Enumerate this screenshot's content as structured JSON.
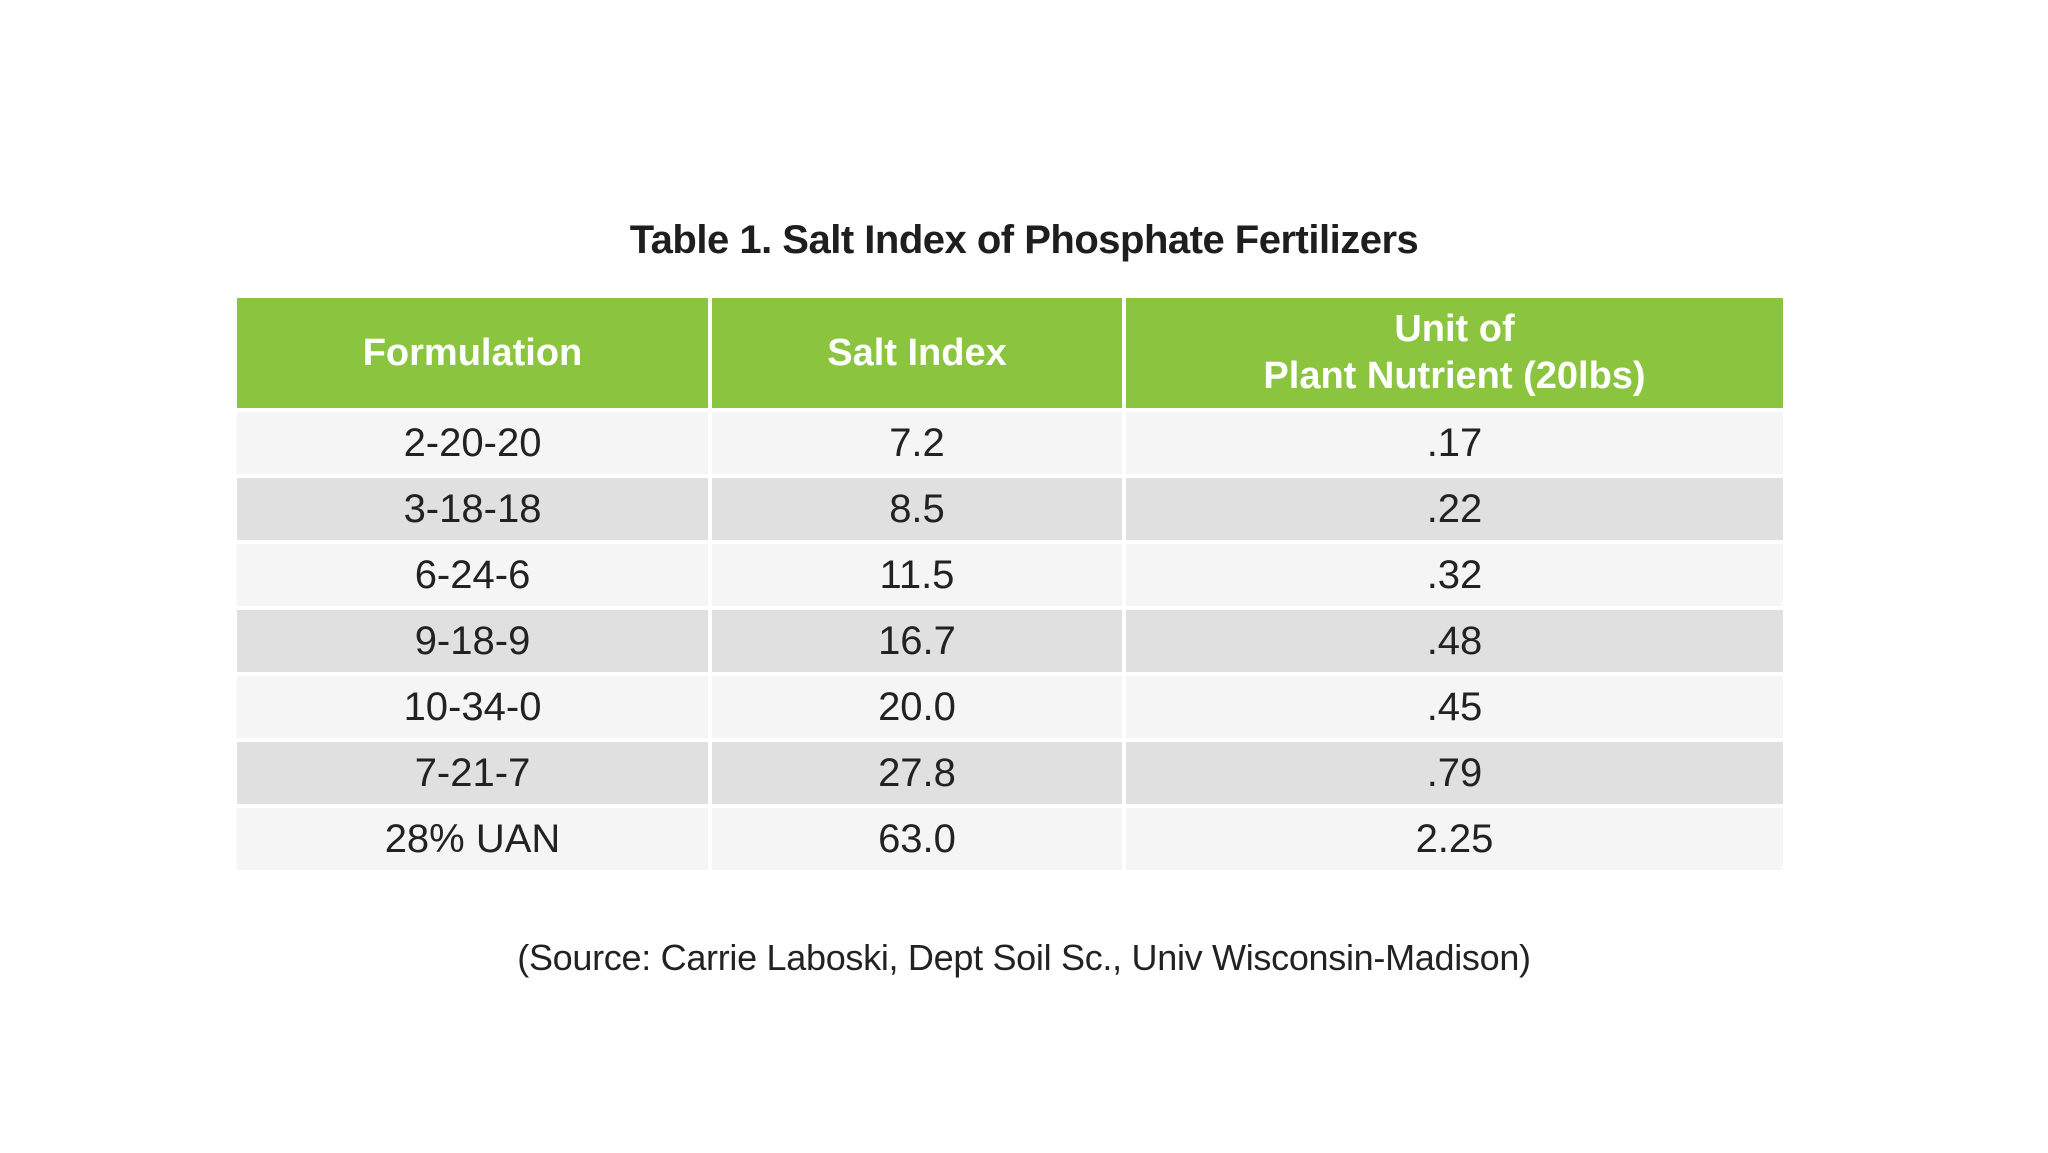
{
  "title": "Table 1. Salt Index of Phosphate Fertilizers",
  "colors": {
    "header_bg": "#8BC53F",
    "header_text": "#FFFFFF",
    "row_light": "#F5F5F5",
    "row_dark": "#E0E0E0",
    "body_text": "#222222"
  },
  "table": {
    "headers": {
      "formulation": "Formulation",
      "salt_index": "Salt Index",
      "unit_line1": "Unit of",
      "unit_line2": "Plant Nutrient (20lbs)"
    },
    "rows": [
      {
        "formulation": "2-20-20",
        "salt_index": "7.2",
        "unit": ".17"
      },
      {
        "formulation": "3-18-18",
        "salt_index": "8.5",
        "unit": ".22"
      },
      {
        "formulation": "6-24-6",
        "salt_index": "11.5",
        "unit": ".32"
      },
      {
        "formulation": "9-18-9",
        "salt_index": "16.7",
        "unit": ".48"
      },
      {
        "formulation": "10-34-0",
        "salt_index": "20.0",
        "unit": ".45"
      },
      {
        "formulation": "7-21-7",
        "salt_index": "27.8",
        "unit": ".79"
      },
      {
        "formulation": "28% UAN",
        "salt_index": "63.0",
        "unit": "2.25"
      }
    ]
  },
  "source": "(Source: Carrie Laboski, Dept Soil Sc., Univ Wisconsin-Madison)"
}
